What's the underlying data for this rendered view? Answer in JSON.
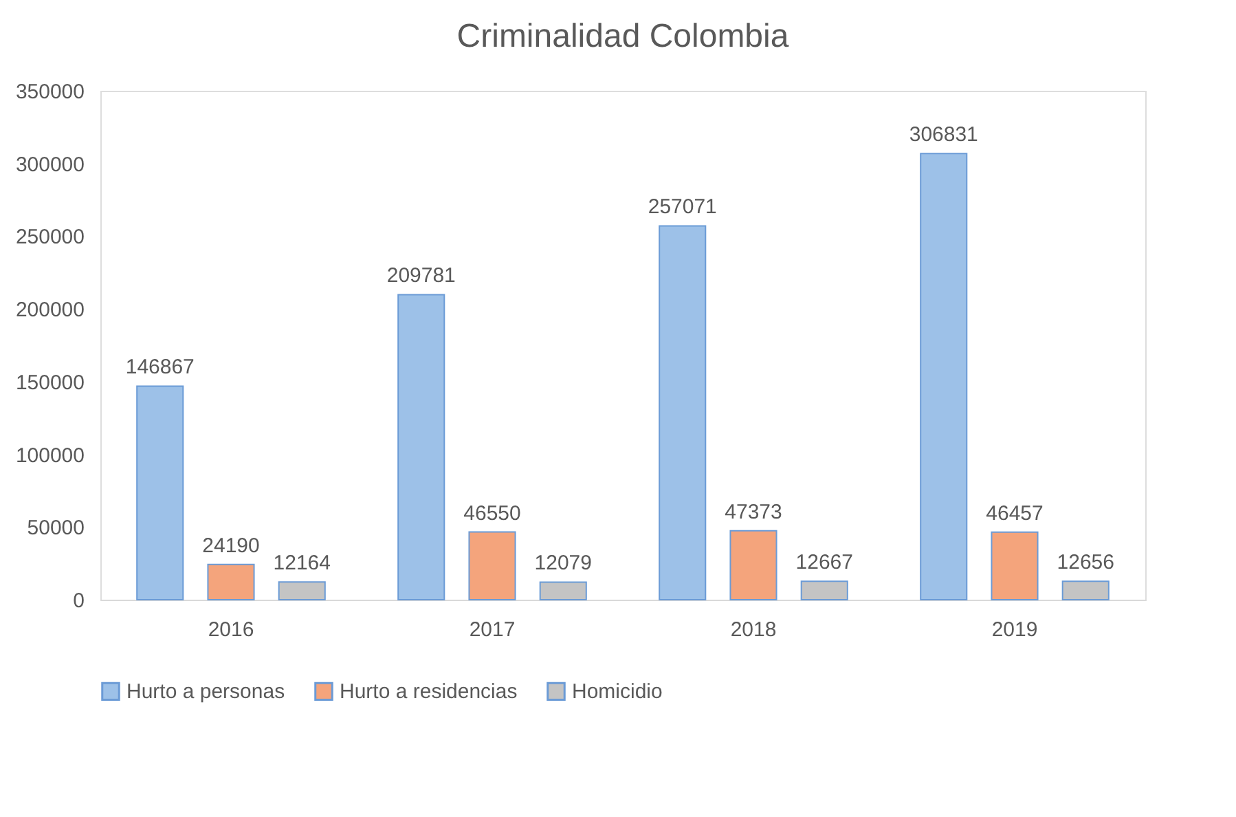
{
  "chart_data": {
    "type": "bar",
    "title": "Criminalidad  Colombia",
    "categories": [
      "2016",
      "2017",
      "2018",
      "2019"
    ],
    "series": [
      {
        "name": "Hurto a personas",
        "color": "#9dc1e8",
        "values": [
          146867,
          209781,
          257071,
          306831
        ]
      },
      {
        "name": "Hurto a residencias",
        "color": "#f4a47c",
        "values": [
          24190,
          46550,
          47373,
          46457
        ]
      },
      {
        "name": "Homicidio",
        "color": "#c4c4c4",
        "values": [
          12164,
          12079,
          12667,
          12656
        ]
      }
    ],
    "ylim": [
      0,
      350000
    ],
    "yticks": [
      0,
      50000,
      100000,
      150000,
      200000,
      250000,
      300000,
      350000
    ],
    "grid": false,
    "legend": "bottom",
    "data_labels": true
  }
}
